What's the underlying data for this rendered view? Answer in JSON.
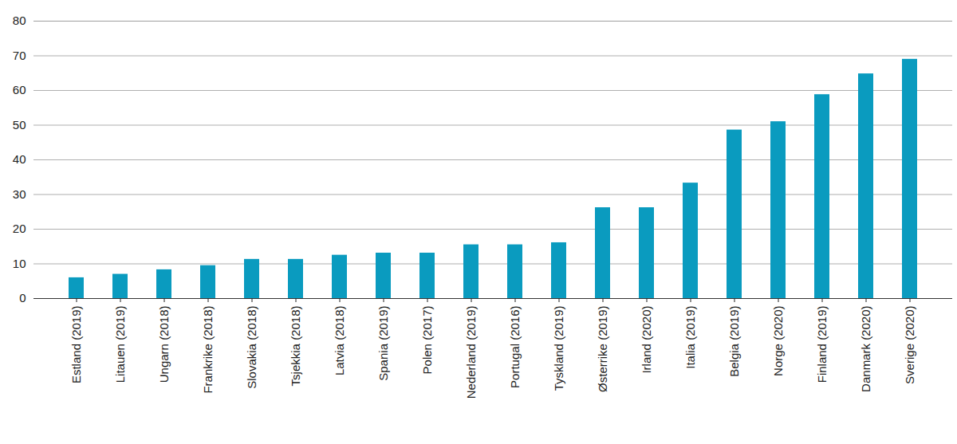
{
  "chart_data": {
    "type": "bar",
    "categories": [
      "Estland (2019)",
      "Litauen (2019)",
      "Ungarn (2018)",
      "Frankrike (2018)",
      "Slovakia (2018)",
      "Tsjekkia (2018)",
      "Latvia (2018)",
      "Spania (2019)",
      "Polen (2017)",
      "Nederland (2019)",
      "Portugal (2016)",
      "Tyskland (2019)",
      "Østerrike (2019)",
      "Irland (2020)",
      "Italia (2019)",
      "Belgia (2019)",
      "Norge (2020)",
      "Finland (2019)",
      "Danmark (2020)",
      "Sverige (2020)"
    ],
    "values": [
      6,
      7,
      8.3,
      9.5,
      11.3,
      11.3,
      12.5,
      13.1,
      13.1,
      15.5,
      15.5,
      16.1,
      26.2,
      26.2,
      33.3,
      48.6,
      51,
      58.8,
      64.8,
      69
    ],
    "color": "#0a9bbf",
    "ylim": [
      0,
      80
    ],
    "yticks": [
      0,
      10,
      20,
      30,
      40,
      50,
      60,
      70,
      80
    ],
    "grid": true
  }
}
